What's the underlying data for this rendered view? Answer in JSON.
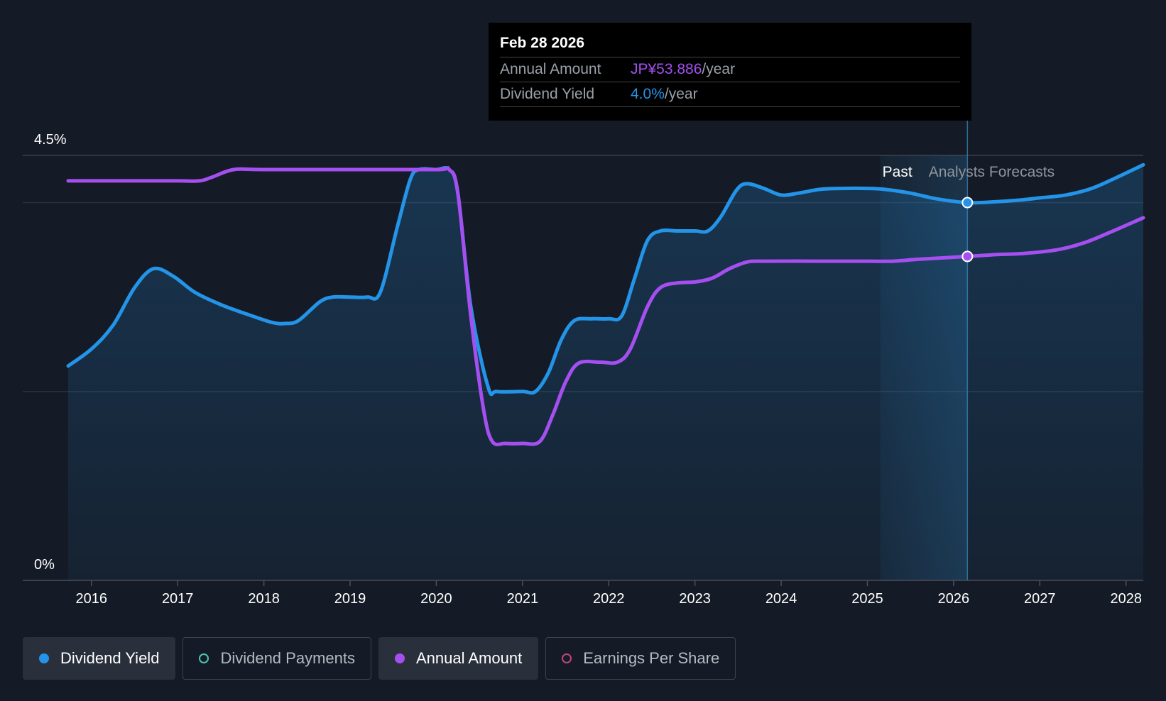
{
  "chart_data": {
    "type": "line",
    "y_axis": {
      "ticks": [
        "4.5%",
        "0%"
      ],
      "min": 0,
      "max": 4.5,
      "grid": true
    },
    "x_axis": {
      "ticks": [
        "2016",
        "2017",
        "2018",
        "2019",
        "2020",
        "2021",
        "2022",
        "2023",
        "2024",
        "2025",
        "2026",
        "2027",
        "2028"
      ],
      "min": 2015.73,
      "max": 2028.2
    },
    "regions": {
      "past_label": "Past",
      "forecast_label": "Analysts Forecasts",
      "forecast_start": 2025.15,
      "divider": 2026.16
    },
    "series": [
      {
        "name": "Dividend Yield",
        "color": "#2394e8",
        "filled": true,
        "points": [
          [
            2015.73,
            2.27
          ],
          [
            2016.0,
            2.45
          ],
          [
            2016.25,
            2.7
          ],
          [
            2016.5,
            3.1
          ],
          [
            2016.72,
            3.3
          ],
          [
            2016.95,
            3.22
          ],
          [
            2017.2,
            3.05
          ],
          [
            2017.5,
            2.92
          ],
          [
            2017.8,
            2.82
          ],
          [
            2018.1,
            2.73
          ],
          [
            2018.25,
            2.72
          ],
          [
            2018.4,
            2.75
          ],
          [
            2018.65,
            2.95
          ],
          [
            2018.8,
            3.0
          ],
          [
            2019.0,
            3.0
          ],
          [
            2019.2,
            3.0
          ],
          [
            2019.35,
            3.05
          ],
          [
            2019.55,
            3.75
          ],
          [
            2019.7,
            4.25
          ],
          [
            2019.8,
            4.35
          ],
          [
            2020.0,
            4.35
          ],
          [
            2020.15,
            4.35
          ],
          [
            2020.25,
            4.1
          ],
          [
            2020.4,
            2.9
          ],
          [
            2020.6,
            2.05
          ],
          [
            2020.7,
            2.0
          ],
          [
            2021.0,
            2.0
          ],
          [
            2021.15,
            2.0
          ],
          [
            2021.3,
            2.2
          ],
          [
            2021.45,
            2.55
          ],
          [
            2021.6,
            2.75
          ],
          [
            2021.8,
            2.77
          ],
          [
            2022.0,
            2.77
          ],
          [
            2022.15,
            2.8
          ],
          [
            2022.3,
            3.2
          ],
          [
            2022.45,
            3.6
          ],
          [
            2022.6,
            3.7
          ],
          [
            2022.8,
            3.7
          ],
          [
            2023.0,
            3.7
          ],
          [
            2023.15,
            3.7
          ],
          [
            2023.3,
            3.85
          ],
          [
            2023.48,
            4.13
          ],
          [
            2023.6,
            4.2
          ],
          [
            2023.8,
            4.15
          ],
          [
            2024.0,
            4.08
          ],
          [
            2024.2,
            4.1
          ],
          [
            2024.45,
            4.14
          ],
          [
            2024.7,
            4.15
          ],
          [
            2025.0,
            4.15
          ],
          [
            2025.2,
            4.14
          ],
          [
            2025.5,
            4.1
          ],
          [
            2025.8,
            4.04
          ],
          [
            2026.16,
            4.0
          ],
          [
            2026.5,
            4.01
          ],
          [
            2026.8,
            4.03
          ],
          [
            2027.0,
            4.05
          ],
          [
            2027.3,
            4.08
          ],
          [
            2027.6,
            4.15
          ],
          [
            2027.9,
            4.27
          ],
          [
            2028.2,
            4.4
          ]
        ]
      },
      {
        "name": "Annual Amount",
        "color": "#a54ff0",
        "filled": false,
        "points": [
          [
            2015.73,
            4.23
          ],
          [
            2016.5,
            4.23
          ],
          [
            2017.0,
            4.23
          ],
          [
            2017.25,
            4.23
          ],
          [
            2017.4,
            4.27
          ],
          [
            2017.65,
            4.35
          ],
          [
            2018.0,
            4.35
          ],
          [
            2019.0,
            4.35
          ],
          [
            2020.0,
            4.35
          ],
          [
            2020.15,
            4.35
          ],
          [
            2020.25,
            4.1
          ],
          [
            2020.4,
            2.8
          ],
          [
            2020.55,
            1.8
          ],
          [
            2020.65,
            1.47
          ],
          [
            2020.8,
            1.45
          ],
          [
            2021.0,
            1.45
          ],
          [
            2021.2,
            1.47
          ],
          [
            2021.35,
            1.75
          ],
          [
            2021.5,
            2.1
          ],
          [
            2021.65,
            2.3
          ],
          [
            2021.9,
            2.31
          ],
          [
            2022.1,
            2.31
          ],
          [
            2022.25,
            2.45
          ],
          [
            2022.45,
            2.9
          ],
          [
            2022.6,
            3.1
          ],
          [
            2022.8,
            3.15
          ],
          [
            2023.0,
            3.16
          ],
          [
            2023.2,
            3.2
          ],
          [
            2023.4,
            3.3
          ],
          [
            2023.6,
            3.37
          ],
          [
            2023.8,
            3.38
          ],
          [
            2024.5,
            3.38
          ],
          [
            2025.0,
            3.38
          ],
          [
            2025.3,
            3.38
          ],
          [
            2025.6,
            3.4
          ],
          [
            2026.16,
            3.43
          ],
          [
            2026.5,
            3.45
          ],
          [
            2026.8,
            3.46
          ],
          [
            2027.2,
            3.5
          ],
          [
            2027.5,
            3.57
          ],
          [
            2027.8,
            3.68
          ],
          [
            2028.2,
            3.84
          ]
        ]
      }
    ],
    "markers": [
      {
        "series": "Dividend Yield",
        "x": 2026.16,
        "y": 4.0
      },
      {
        "series": "Annual Amount",
        "x": 2026.16,
        "y": 3.43
      }
    ]
  },
  "tooltip": {
    "date": "Feb 28 2026",
    "rows": [
      {
        "label": "Annual Amount",
        "value": "JP¥53.886",
        "suffix": "/year",
        "color": "#a54ff0"
      },
      {
        "label": "Dividend Yield",
        "value": "4.0%",
        "suffix": "/year",
        "color": "#2394e8"
      }
    ]
  },
  "legend": [
    {
      "label": "Dividend Yield",
      "color": "#2394e8",
      "active": true,
      "filled": true
    },
    {
      "label": "Dividend Payments",
      "color": "#4fc3b0",
      "active": false,
      "filled": false
    },
    {
      "label": "Annual Amount",
      "color": "#a54ff0",
      "active": true,
      "filled": true
    },
    {
      "label": "Earnings Per Share",
      "color": "#c0457a",
      "active": false,
      "filled": false
    }
  ]
}
